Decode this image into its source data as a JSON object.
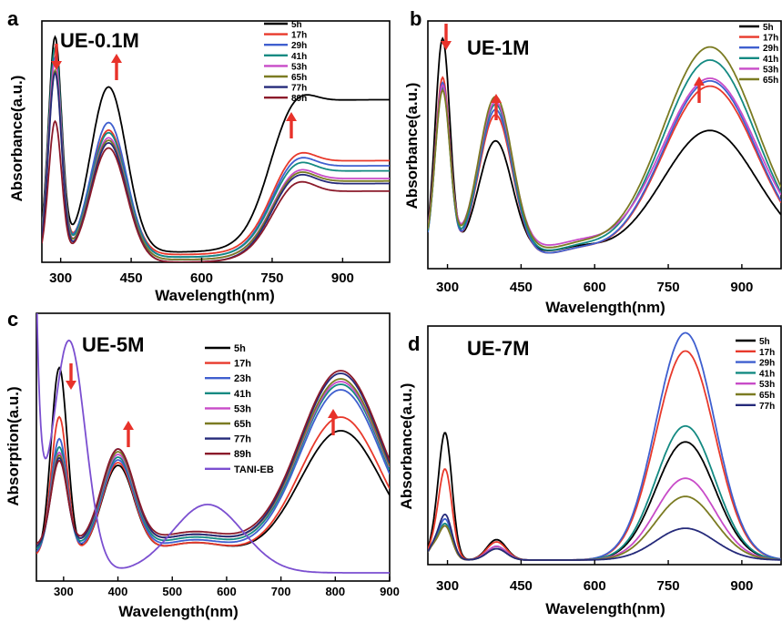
{
  "chart_data": [
    {
      "id": "a",
      "type": "line",
      "panel_label": "a",
      "title": "UE-0.1M",
      "xlabel": "Wavelength(nm)",
      "ylabel": "Absorbance(a.u.)",
      "xlim": [
        260,
        1000
      ],
      "ylim": [
        0,
        1
      ],
      "xticks": [
        300,
        450,
        600,
        750,
        900
      ],
      "legend_position": "top-right",
      "series": [
        {
          "name": "5h",
          "color": "#000000",
          "peak1": 0.93,
          "peak2": 0.74,
          "valley": 0.09,
          "tail": 0.69
        },
        {
          "name": "17h",
          "color": "#e8392b",
          "peak1": 0.88,
          "peak2": 0.57,
          "valley": 0.08,
          "tail": 0.45
        },
        {
          "name": "29h",
          "color": "#3f5fcf",
          "peak1": 0.85,
          "peak2": 0.6,
          "valley": 0.07,
          "tail": 0.43
        },
        {
          "name": "41h",
          "color": "#148a82",
          "peak1": 0.89,
          "peak2": 0.56,
          "valley": 0.07,
          "tail": 0.41
        },
        {
          "name": "53h",
          "color": "#c84bc8",
          "peak1": 0.84,
          "peak2": 0.54,
          "valley": 0.06,
          "tail": 0.38
        },
        {
          "name": "65h",
          "color": "#7b7b22",
          "peak1": 0.8,
          "peak2": 0.53,
          "valley": 0.06,
          "tail": 0.37
        },
        {
          "name": "77h",
          "color": "#252a7a",
          "peak1": 0.79,
          "peak2": 0.52,
          "valley": 0.05,
          "tail": 0.36
        },
        {
          "name": "89h",
          "color": "#8b1a2a",
          "peak1": 0.6,
          "peak2": 0.5,
          "valley": 0.05,
          "tail": 0.33
        }
      ]
    },
    {
      "id": "b",
      "type": "line",
      "panel_label": "b",
      "title": "UE-1M",
      "xlabel": "Wavelength(nm)",
      "ylabel": "Absorbance(a.u.)",
      "xlim": [
        260,
        980
      ],
      "ylim": [
        0,
        1
      ],
      "xticks": [
        300,
        450,
        600,
        750,
        900
      ],
      "legend_position": "top-right",
      "series": [
        {
          "name": "5h",
          "color": "#000000",
          "peak1": 0.93,
          "peak2": 0.54,
          "valley": 0.11,
          "peak3": 0.58
        },
        {
          "name": "17h",
          "color": "#e8392b",
          "peak1": 0.78,
          "peak2": 0.64,
          "valley": 0.1,
          "peak3": 0.75
        },
        {
          "name": "29h",
          "color": "#3f5fcf",
          "peak1": 0.76,
          "peak2": 0.66,
          "valley": 0.1,
          "peak3": 0.77
        },
        {
          "name": "41h",
          "color": "#148a82",
          "peak1": 0.74,
          "peak2": 0.68,
          "valley": 0.11,
          "peak3": 0.85
        },
        {
          "name": "53h",
          "color": "#c84bc8",
          "peak1": 0.75,
          "peak2": 0.69,
          "valley": 0.13,
          "peak3": 0.78
        },
        {
          "name": "65h",
          "color": "#7b7b22",
          "peak1": 0.73,
          "peak2": 0.71,
          "valley": 0.12,
          "peak3": 0.9
        }
      ]
    },
    {
      "id": "c",
      "type": "line",
      "panel_label": "c",
      "title": "UE-5M",
      "xlabel": "Wavelength(nm)",
      "ylabel": "Absorption(a.u.)",
      "xlim": [
        250,
        900
      ],
      "ylim": [
        0,
        1
      ],
      "xticks": [
        300,
        400,
        500,
        600,
        700,
        800,
        900
      ],
      "legend_position": "top-center",
      "series": [
        {
          "name": "5h",
          "color": "#000000",
          "peak1": 0.78,
          "peak2": 0.42,
          "valley": 0.09,
          "peak3": 0.55
        },
        {
          "name": "17h",
          "color": "#e8392b",
          "peak1": 0.6,
          "peak2": 0.43,
          "valley": 0.09,
          "peak3": 0.6
        },
        {
          "name": "23h",
          "color": "#3f5fcf",
          "peak1": 0.52,
          "peak2": 0.44,
          "valley": 0.1,
          "peak3": 0.7
        },
        {
          "name": "41h",
          "color": "#148a82",
          "peak1": 0.49,
          "peak2": 0.45,
          "valley": 0.11,
          "peak3": 0.72
        },
        {
          "name": "53h",
          "color": "#c84bc8",
          "peak1": 0.47,
          "peak2": 0.46,
          "valley": 0.12,
          "peak3": 0.73
        },
        {
          "name": "65h",
          "color": "#7b7b22",
          "peak1": 0.46,
          "peak2": 0.47,
          "valley": 0.12,
          "peak3": 0.74
        },
        {
          "name": "77h",
          "color": "#252a7a",
          "peak1": 0.45,
          "peak2": 0.48,
          "valley": 0.12,
          "peak3": 0.76
        },
        {
          "name": "89h",
          "color": "#8b1a2a",
          "peak1": 0.44,
          "peak2": 0.48,
          "valley": 0.13,
          "peak3": 0.77
        },
        {
          "name": "TANI-EB",
          "color": "#7b4fd0",
          "peak1": 0.9,
          "peak2": 0.25,
          "valley": 0.14,
          "peak3": 0.03
        }
      ]
    },
    {
      "id": "d",
      "type": "line",
      "panel_label": "d",
      "title": "UE-7M",
      "xlabel": "Wavelength(nm)",
      "ylabel": "Absorbance(a.u.)",
      "xlim": [
        260,
        980
      ],
      "ylim": [
        0,
        1
      ],
      "xticks": [
        300,
        450,
        600,
        750,
        900
      ],
      "legend_position": "top-right",
      "series": [
        {
          "name": "5h",
          "color": "#000000",
          "peak1": 0.56,
          "peak2": 0.09,
          "valley": 0.0,
          "peak3": 0.52
        },
        {
          "name": "17h",
          "color": "#e8392b",
          "peak1": 0.4,
          "peak2": 0.08,
          "valley": 0.0,
          "peak3": 0.92
        },
        {
          "name": "29h",
          "color": "#3f5fcf",
          "peak1": 0.18,
          "peak2": 0.06,
          "valley": 0.0,
          "peak3": 1.0
        },
        {
          "name": "41h",
          "color": "#148a82",
          "peak1": 0.16,
          "peak2": 0.06,
          "valley": 0.0,
          "peak3": 0.59
        },
        {
          "name": "53h",
          "color": "#c84bc8",
          "peak1": 0.15,
          "peak2": 0.06,
          "valley": 0.0,
          "peak3": 0.36
        },
        {
          "name": "65h",
          "color": "#7b7b22",
          "peak1": 0.15,
          "peak2": 0.05,
          "valley": 0.0,
          "peak3": 0.28
        },
        {
          "name": "77h",
          "color": "#252a7a",
          "peak1": 0.2,
          "peak2": 0.05,
          "valley": 0.0,
          "peak3": 0.14
        }
      ]
    }
  ]
}
